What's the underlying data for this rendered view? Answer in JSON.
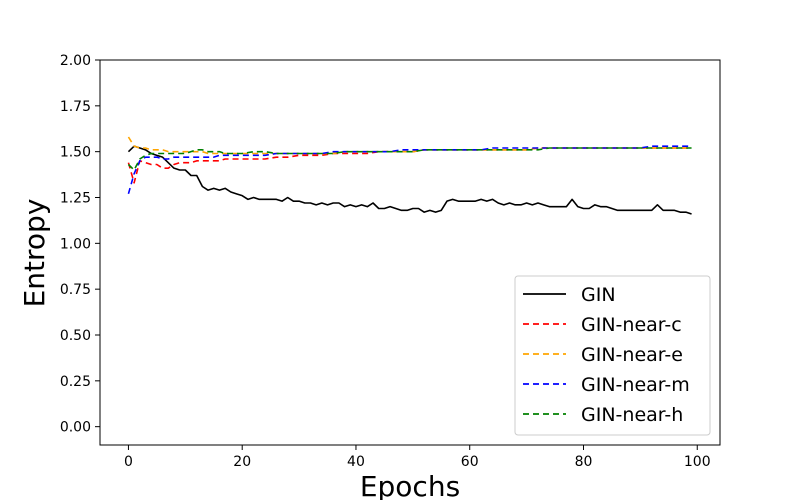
{
  "chart_data": {
    "type": "line",
    "title": "",
    "xlabel": "Epochs",
    "ylabel": "Entropy",
    "xlim": [
      -5,
      104
    ],
    "ylim": [
      -0.1,
      2.0
    ],
    "xticks": [
      0,
      20,
      40,
      60,
      80,
      100
    ],
    "xtick_labels": [
      "0",
      "20",
      "40",
      "60",
      "80",
      "100"
    ],
    "yticks": [
      0.0,
      0.25,
      0.5,
      0.75,
      1.0,
      1.25,
      1.5,
      1.75,
      2.0
    ],
    "ytick_labels": [
      "0.00",
      "0.25",
      "0.50",
      "0.75",
      "1.00",
      "1.25",
      "1.50",
      "1.75",
      "2.00"
    ],
    "grid": false,
    "legend_position": "lower-right",
    "series": [
      {
        "name": "GIN",
        "color": "#000000",
        "style": "solid",
        "x": [
          0,
          1,
          2,
          3,
          4,
          5,
          6,
          7,
          8,
          9,
          10,
          11,
          12,
          13,
          14,
          15,
          16,
          17,
          18,
          19,
          20,
          21,
          22,
          23,
          24,
          25,
          26,
          27,
          28,
          29,
          30,
          31,
          32,
          33,
          34,
          35,
          36,
          37,
          38,
          39,
          40,
          41,
          42,
          43,
          44,
          45,
          46,
          47,
          48,
          49,
          50,
          51,
          52,
          53,
          54,
          55,
          56,
          57,
          58,
          59,
          60,
          61,
          62,
          63,
          64,
          65,
          66,
          67,
          68,
          69,
          70,
          71,
          72,
          73,
          74,
          75,
          76,
          77,
          78,
          79,
          80,
          81,
          82,
          83,
          84,
          85,
          86,
          87,
          88,
          89,
          90,
          91,
          92,
          93,
          94,
          95,
          96,
          97,
          98,
          99
        ],
        "y": [
          1.5,
          1.53,
          1.52,
          1.51,
          1.49,
          1.48,
          1.47,
          1.44,
          1.41,
          1.4,
          1.4,
          1.37,
          1.37,
          1.31,
          1.29,
          1.3,
          1.29,
          1.3,
          1.28,
          1.27,
          1.26,
          1.24,
          1.25,
          1.24,
          1.24,
          1.24,
          1.24,
          1.23,
          1.25,
          1.23,
          1.23,
          1.22,
          1.22,
          1.21,
          1.22,
          1.21,
          1.22,
          1.22,
          1.2,
          1.21,
          1.2,
          1.21,
          1.2,
          1.22,
          1.19,
          1.19,
          1.2,
          1.19,
          1.18,
          1.18,
          1.19,
          1.19,
          1.17,
          1.18,
          1.17,
          1.18,
          1.23,
          1.24,
          1.23,
          1.23,
          1.23,
          1.23,
          1.24,
          1.23,
          1.24,
          1.22,
          1.21,
          1.22,
          1.21,
          1.21,
          1.22,
          1.21,
          1.22,
          1.21,
          1.2,
          1.2,
          1.2,
          1.2,
          1.24,
          1.2,
          1.19,
          1.19,
          1.21,
          1.2,
          1.2,
          1.19,
          1.18,
          1.18,
          1.18,
          1.18,
          1.18,
          1.18,
          1.18,
          1.21,
          1.18,
          1.18,
          1.18,
          1.17,
          1.17,
          1.16
        ]
      },
      {
        "name": "GIN-near-c",
        "color": "#ff0000",
        "style": "dashed",
        "x": [
          0,
          1,
          2,
          3,
          4,
          5,
          6,
          7,
          8,
          9,
          10,
          11,
          12,
          13,
          14,
          15,
          16,
          17,
          18,
          19,
          20,
          22,
          24,
          26,
          28,
          30,
          32,
          34,
          36,
          38,
          40,
          42,
          44,
          46,
          48,
          50,
          52,
          54,
          56,
          58,
          60,
          62,
          64,
          66,
          68,
          70,
          72,
          74,
          76,
          78,
          80,
          82,
          84,
          86,
          88,
          90,
          92,
          94,
          96,
          98,
          99
        ],
        "y": [
          1.44,
          1.33,
          1.45,
          1.44,
          1.43,
          1.43,
          1.41,
          1.41,
          1.43,
          1.44,
          1.44,
          1.44,
          1.45,
          1.45,
          1.45,
          1.45,
          1.45,
          1.46,
          1.46,
          1.46,
          1.46,
          1.46,
          1.46,
          1.47,
          1.47,
          1.48,
          1.48,
          1.48,
          1.49,
          1.49,
          1.49,
          1.49,
          1.5,
          1.5,
          1.5,
          1.5,
          1.51,
          1.51,
          1.51,
          1.51,
          1.51,
          1.51,
          1.51,
          1.51,
          1.51,
          1.51,
          1.52,
          1.52,
          1.52,
          1.52,
          1.52,
          1.52,
          1.52,
          1.52,
          1.52,
          1.52,
          1.52,
          1.52,
          1.52,
          1.52,
          1.52
        ]
      },
      {
        "name": "GIN-near-e",
        "color": "#ffa500",
        "style": "dashed",
        "x": [
          0,
          1,
          2,
          3,
          4,
          5,
          6,
          7,
          8,
          9,
          10,
          11,
          12,
          13,
          14,
          15,
          16,
          17,
          18,
          19,
          20,
          22,
          24,
          26,
          28,
          30,
          32,
          34,
          36,
          38,
          40,
          42,
          44,
          46,
          48,
          50,
          52,
          54,
          56,
          58,
          60,
          62,
          64,
          66,
          68,
          70,
          72,
          74,
          76,
          78,
          80,
          82,
          84,
          86,
          88,
          90,
          92,
          94,
          96,
          98,
          99
        ],
        "y": [
          1.58,
          1.53,
          1.52,
          1.52,
          1.51,
          1.51,
          1.51,
          1.5,
          1.5,
          1.5,
          1.5,
          1.5,
          1.5,
          1.5,
          1.49,
          1.49,
          1.49,
          1.49,
          1.49,
          1.49,
          1.49,
          1.49,
          1.49,
          1.49,
          1.49,
          1.49,
          1.49,
          1.49,
          1.49,
          1.5,
          1.5,
          1.5,
          1.5,
          1.5,
          1.5,
          1.5,
          1.51,
          1.51,
          1.51,
          1.51,
          1.51,
          1.51,
          1.51,
          1.51,
          1.51,
          1.51,
          1.52,
          1.52,
          1.52,
          1.52,
          1.52,
          1.52,
          1.52,
          1.52,
          1.52,
          1.52,
          1.52,
          1.52,
          1.52,
          1.52,
          1.52
        ]
      },
      {
        "name": "GIN-near-m",
        "color": "#0000ff",
        "style": "dashed",
        "x": [
          0,
          1,
          2,
          3,
          4,
          5,
          6,
          7,
          8,
          9,
          10,
          11,
          12,
          13,
          14,
          15,
          16,
          17,
          18,
          19,
          20,
          22,
          24,
          26,
          28,
          30,
          32,
          34,
          36,
          38,
          40,
          42,
          44,
          46,
          48,
          50,
          52,
          54,
          56,
          58,
          60,
          62,
          64,
          66,
          68,
          70,
          72,
          74,
          76,
          78,
          80,
          82,
          84,
          86,
          88,
          90,
          92,
          94,
          96,
          98,
          99
        ],
        "y": [
          1.27,
          1.38,
          1.45,
          1.47,
          1.47,
          1.47,
          1.46,
          1.46,
          1.47,
          1.47,
          1.47,
          1.47,
          1.47,
          1.47,
          1.47,
          1.47,
          1.48,
          1.48,
          1.48,
          1.48,
          1.48,
          1.48,
          1.48,
          1.49,
          1.49,
          1.49,
          1.49,
          1.49,
          1.5,
          1.5,
          1.5,
          1.5,
          1.5,
          1.5,
          1.51,
          1.51,
          1.51,
          1.51,
          1.51,
          1.51,
          1.51,
          1.51,
          1.52,
          1.52,
          1.52,
          1.52,
          1.52,
          1.52,
          1.52,
          1.52,
          1.52,
          1.52,
          1.52,
          1.52,
          1.52,
          1.52,
          1.53,
          1.53,
          1.53,
          1.53,
          1.53
        ]
      },
      {
        "name": "GIN-near-h",
        "color": "#008000",
        "style": "dashed",
        "x": [
          0,
          1,
          2,
          3,
          4,
          5,
          6,
          7,
          8,
          9,
          10,
          11,
          12,
          13,
          14,
          15,
          16,
          17,
          18,
          19,
          20,
          22,
          24,
          26,
          28,
          30,
          32,
          34,
          36,
          38,
          40,
          42,
          44,
          46,
          48,
          50,
          52,
          54,
          56,
          58,
          60,
          62,
          64,
          66,
          68,
          70,
          72,
          74,
          76,
          78,
          80,
          82,
          84,
          86,
          88,
          90,
          92,
          94,
          96,
          98,
          99
        ],
        "y": [
          1.43,
          1.4,
          1.46,
          1.48,
          1.49,
          1.49,
          1.49,
          1.49,
          1.49,
          1.49,
          1.49,
          1.5,
          1.51,
          1.51,
          1.5,
          1.5,
          1.5,
          1.49,
          1.49,
          1.49,
          1.49,
          1.5,
          1.5,
          1.49,
          1.49,
          1.49,
          1.49,
          1.49,
          1.49,
          1.5,
          1.5,
          1.5,
          1.5,
          1.5,
          1.5,
          1.5,
          1.51,
          1.51,
          1.51,
          1.51,
          1.51,
          1.51,
          1.51,
          1.51,
          1.51,
          1.51,
          1.51,
          1.52,
          1.52,
          1.52,
          1.52,
          1.52,
          1.52,
          1.52,
          1.52,
          1.52,
          1.52,
          1.52,
          1.52,
          1.52,
          1.52
        ]
      }
    ]
  }
}
